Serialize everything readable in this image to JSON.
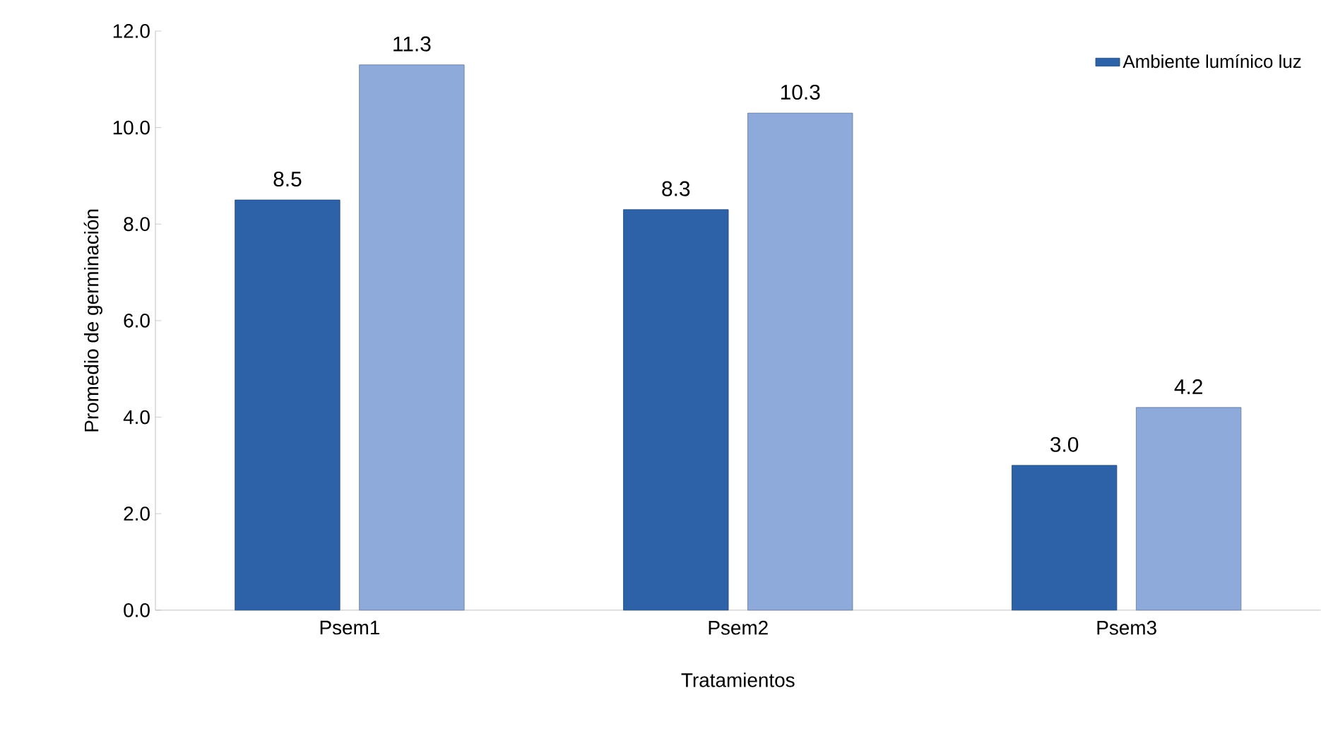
{
  "chart_data": {
    "type": "bar",
    "xlabel": "Tratamientos",
    "ylabel": "Promedio de germinación",
    "categories": [
      "Psem1",
      "Psem2",
      "Psem3"
    ],
    "series": [
      {
        "name": "Ambiente lumínico luz",
        "color": "#2e62a8",
        "values": [
          8.5,
          8.3,
          3.0
        ],
        "value_labels": [
          "8.5",
          "8.3",
          "3.0"
        ]
      },
      {
        "color": "#8eaadb",
        "values": [
          11.3,
          10.3,
          4.2
        ],
        "value_labels": [
          "11.3",
          "10.3",
          "4.2"
        ]
      }
    ],
    "ylim": [
      0,
      12
    ],
    "yticks": [
      {
        "value": 0,
        "label": "0.0"
      },
      {
        "value": 2,
        "label": "2.0"
      },
      {
        "value": 4,
        "label": "4.0"
      },
      {
        "value": 6,
        "label": "6.0"
      },
      {
        "value": 8,
        "label": "8.0"
      },
      {
        "value": 10,
        "label": "10.0"
      },
      {
        "value": 12,
        "label": "12.0"
      }
    ],
    "grid": false,
    "legend": "top right"
  }
}
